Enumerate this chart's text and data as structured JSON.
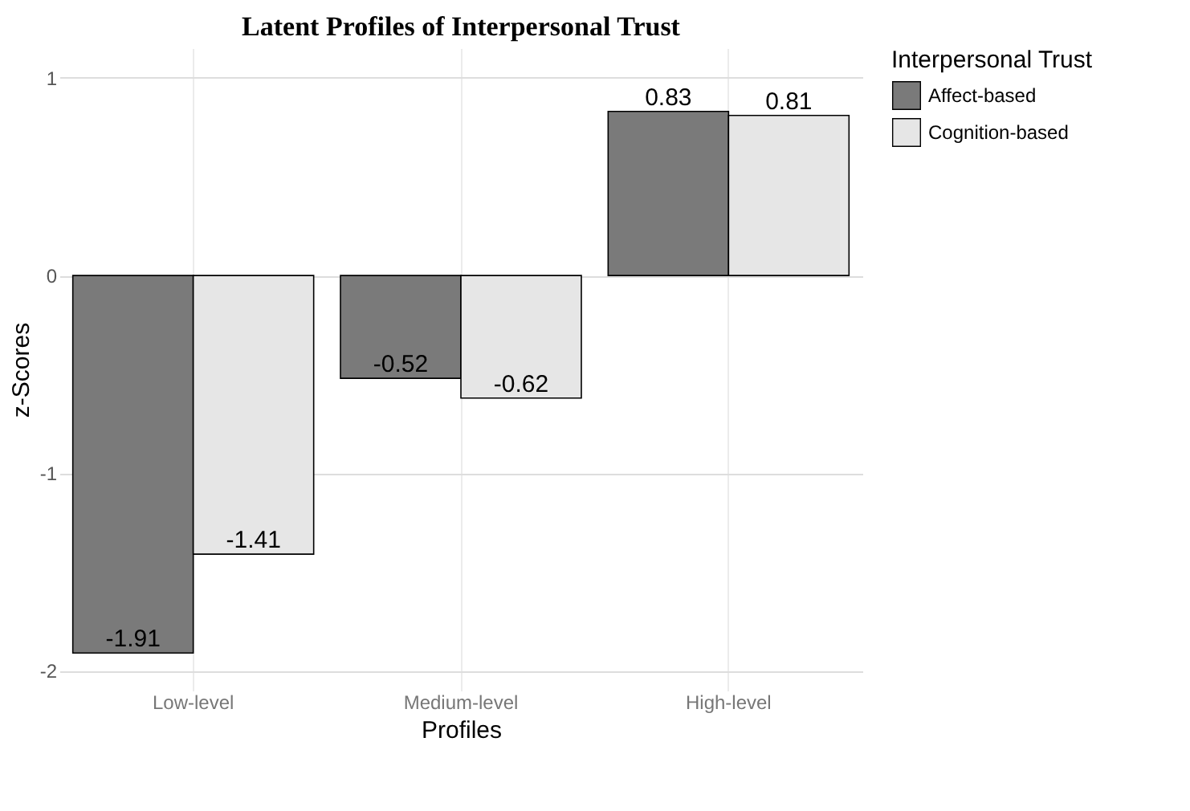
{
  "chart_data": {
    "type": "bar",
    "title": "Latent Profiles of Interpersonal Trust",
    "xlabel": "Profiles",
    "ylabel": "z-Scores",
    "legend_title": "Interpersonal Trust",
    "categories": [
      "Low-level",
      "Medium-level",
      "High-level"
    ],
    "series": [
      {
        "name": "Affect-based",
        "color": "#7a7a7a",
        "values": [
          -1.91,
          -0.52,
          0.83
        ]
      },
      {
        "name": "Cognition-based",
        "color": "#e6e6e6",
        "values": [
          -1.41,
          -0.62,
          0.81
        ]
      }
    ],
    "ylim": [
      -2.1,
      1.15
    ],
    "yticks": [
      -2,
      -1,
      0,
      1
    ],
    "grid": true,
    "legend": "right",
    "data_labels": true
  }
}
